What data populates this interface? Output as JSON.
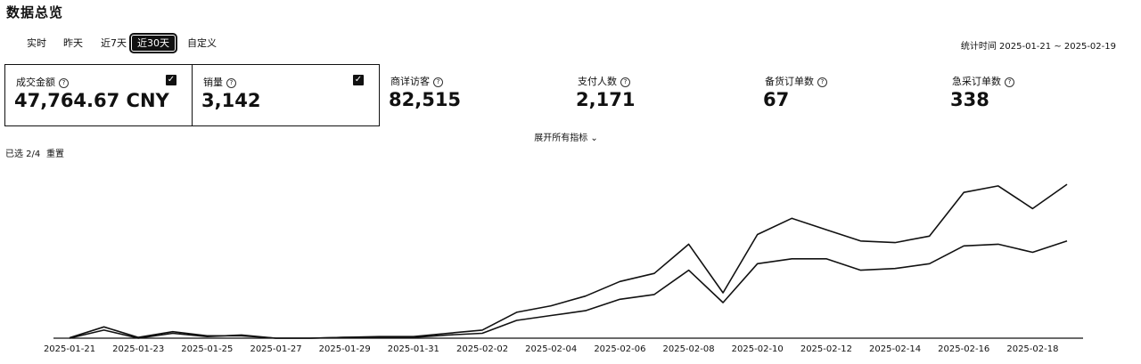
{
  "page": {
    "title": "数据总览"
  },
  "tabs": [
    {
      "label": "实时",
      "active": false
    },
    {
      "label": "昨天",
      "active": false
    },
    {
      "label": "近7天",
      "active": false
    },
    {
      "label": "近30天",
      "active": true
    },
    {
      "label": "自定义",
      "active": false
    }
  ],
  "stat_time": "统计时间 2025-01-21 ~ 2025-02-19",
  "metrics": [
    {
      "label": "成交金额",
      "value": "47,764.67 CNY",
      "checked": true
    },
    {
      "label": "销量",
      "value": "3,142",
      "checked": true
    },
    {
      "label": "商详访客",
      "value": "82,515",
      "checked": false
    },
    {
      "label": "支付人数",
      "value": "2,171",
      "checked": false
    },
    {
      "label": "备货订单数",
      "value": "67",
      "checked": false
    },
    {
      "label": "急采订单数",
      "value": "338",
      "checked": false
    }
  ],
  "expand_label": "展开所有指标 ⌄",
  "selected_count": "已选 2/4",
  "reset_label": "重置",
  "icons": {
    "help": "question-circle-icon",
    "check": "checkbox-checked-icon",
    "expand": "chevron-down-icon"
  },
  "colors": {
    "line": "#111111",
    "background": "#ffffff"
  },
  "chart_data": {
    "type": "line",
    "x": [
      "2025-01-21",
      "2025-01-22",
      "2025-01-23",
      "2025-01-24",
      "2025-01-25",
      "2025-01-26",
      "2025-01-27",
      "2025-01-28",
      "2025-01-29",
      "2025-01-30",
      "2025-01-31",
      "2025-02-01",
      "2025-02-02",
      "2025-02-03",
      "2025-02-04",
      "2025-02-05",
      "2025-02-06",
      "2025-02-07",
      "2025-02-08",
      "2025-02-09",
      "2025-02-10",
      "2025-02-11",
      "2025-02-12",
      "2025-02-13",
      "2025-02-14",
      "2025-02-15",
      "2025-02-16",
      "2025-02-17",
      "2025-02-18",
      "2025-02-19"
    ],
    "x_tick_labels": [
      "2025-01-21",
      "2025-01-23",
      "2025-01-25",
      "2025-01-27",
      "2025-01-29",
      "2025-01-31",
      "2025-02-02",
      "2025-02-04",
      "2025-02-06",
      "2025-02-08",
      "2025-02-10",
      "2025-02-12",
      "2025-02-14",
      "2025-02-16",
      "2025-02-18"
    ],
    "series": [
      {
        "values": [
          0.3,
          7,
          0.5,
          4,
          1.5,
          1.5,
          0,
          0,
          0.5,
          1,
          1,
          3,
          5,
          16,
          20,
          26,
          35,
          40,
          58,
          28,
          64,
          74,
          67,
          60,
          59,
          63,
          90,
          94,
          80,
          95
        ]
      },
      {
        "values": [
          0,
          5,
          0,
          3,
          1,
          2,
          0,
          0,
          0.5,
          0.5,
          0.5,
          2,
          3,
          11,
          14,
          17,
          24,
          27,
          42,
          22,
          46,
          49,
          49,
          42,
          43,
          46,
          57,
          58,
          53,
          60
        ]
      }
    ],
    "ylim": [
      0,
      100
    ],
    "grid": false
  }
}
